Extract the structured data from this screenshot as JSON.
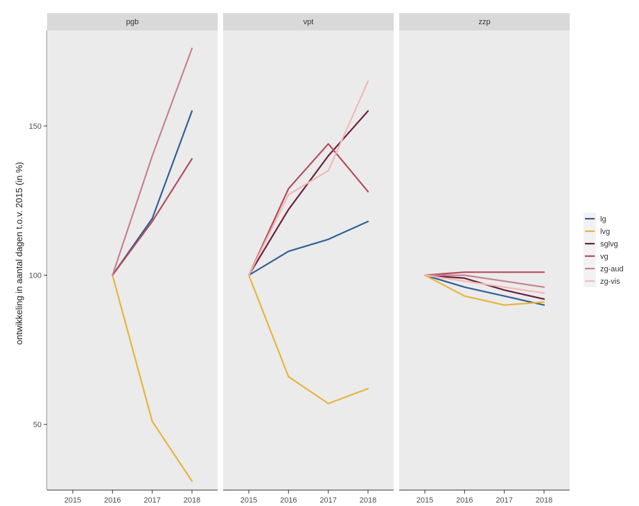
{
  "chart_data": {
    "type": "line",
    "ylabel": "ontwikkeling in aantal dagen t.o.v. 2015 (in %)",
    "xlabel": "",
    "x_ticks": [
      "2015",
      "2016",
      "2017",
      "2018"
    ],
    "y_ticks": [
      50,
      100,
      150
    ],
    "ylim": [
      28,
      182
    ],
    "grid": false,
    "legend_position": "right",
    "legend": [
      {
        "name": "lg",
        "color": "#2f5f99"
      },
      {
        "name": "lvg",
        "color": "#e8b43c"
      },
      {
        "name": "sglvg",
        "color": "#6b1f3d"
      },
      {
        "name": "vg",
        "color": "#b44c5a"
      },
      {
        "name": "zg-aud",
        "color": "#c7828f"
      },
      {
        "name": "zg-vis",
        "color": "#f2b9b3"
      }
    ],
    "panels": [
      {
        "name": "pgb",
        "series": [
          {
            "name": "lg",
            "points": [
              [
                "2016",
                100
              ],
              [
                "2017",
                119
              ],
              [
                "2018",
                155
              ]
            ]
          },
          {
            "name": "lvg",
            "points": [
              [
                "2016",
                100
              ],
              [
                "2017",
                51
              ],
              [
                "2018",
                31
              ]
            ]
          },
          {
            "name": "vg",
            "points": [
              [
                "2016",
                100
              ],
              [
                "2017",
                118
              ],
              [
                "2018",
                139
              ]
            ]
          },
          {
            "name": "zg-aud",
            "points": [
              [
                "2016",
                100
              ],
              [
                "2017",
                140
              ],
              [
                "2018",
                176
              ]
            ]
          }
        ]
      },
      {
        "name": "vpt",
        "series": [
          {
            "name": "lg",
            "points": [
              [
                "2015",
                100
              ],
              [
                "2016",
                108
              ],
              [
                "2017",
                112
              ],
              [
                "2018",
                118
              ]
            ]
          },
          {
            "name": "lvg",
            "points": [
              [
                "2015",
                100
              ],
              [
                "2016",
                66
              ],
              [
                "2017",
                57
              ],
              [
                "2018",
                62
              ]
            ]
          },
          {
            "name": "sglvg",
            "points": [
              [
                "2015",
                100
              ],
              [
                "2016",
                122
              ],
              [
                "2017",
                140
              ],
              [
                "2018",
                155
              ]
            ]
          },
          {
            "name": "vg",
            "points": [
              [
                "2015",
                100
              ],
              [
                "2016",
                129
              ],
              [
                "2017",
                144
              ],
              [
                "2018",
                128
              ]
            ]
          },
          {
            "name": "zg-vis",
            "points": [
              [
                "2015",
                100
              ],
              [
                "2016",
                127
              ],
              [
                "2017",
                135
              ],
              [
                "2018",
                165
              ]
            ]
          }
        ]
      },
      {
        "name": "zzp",
        "series": [
          {
            "name": "lg",
            "points": [
              [
                "2015",
                100
              ],
              [
                "2016",
                96
              ],
              [
                "2017",
                93
              ],
              [
                "2018",
                90
              ]
            ]
          },
          {
            "name": "lvg",
            "points": [
              [
                "2015",
                100
              ],
              [
                "2016",
                93
              ],
              [
                "2017",
                90
              ],
              [
                "2018",
                91
              ]
            ]
          },
          {
            "name": "sglvg",
            "points": [
              [
                "2015",
                100
              ],
              [
                "2016",
                99
              ],
              [
                "2017",
                95
              ],
              [
                "2018",
                92
              ]
            ]
          },
          {
            "name": "vg",
            "points": [
              [
                "2015",
                100
              ],
              [
                "2016",
                101
              ],
              [
                "2017",
                101
              ],
              [
                "2018",
                101
              ]
            ]
          },
          {
            "name": "zg-aud",
            "points": [
              [
                "2015",
                100
              ],
              [
                "2016",
                100
              ],
              [
                "2017",
                98
              ],
              [
                "2018",
                96
              ]
            ]
          },
          {
            "name": "zg-vis",
            "points": [
              [
                "2015",
                100
              ],
              [
                "2016",
                98
              ],
              [
                "2017",
                96
              ],
              [
                "2018",
                94
              ]
            ]
          }
        ]
      }
    ]
  }
}
